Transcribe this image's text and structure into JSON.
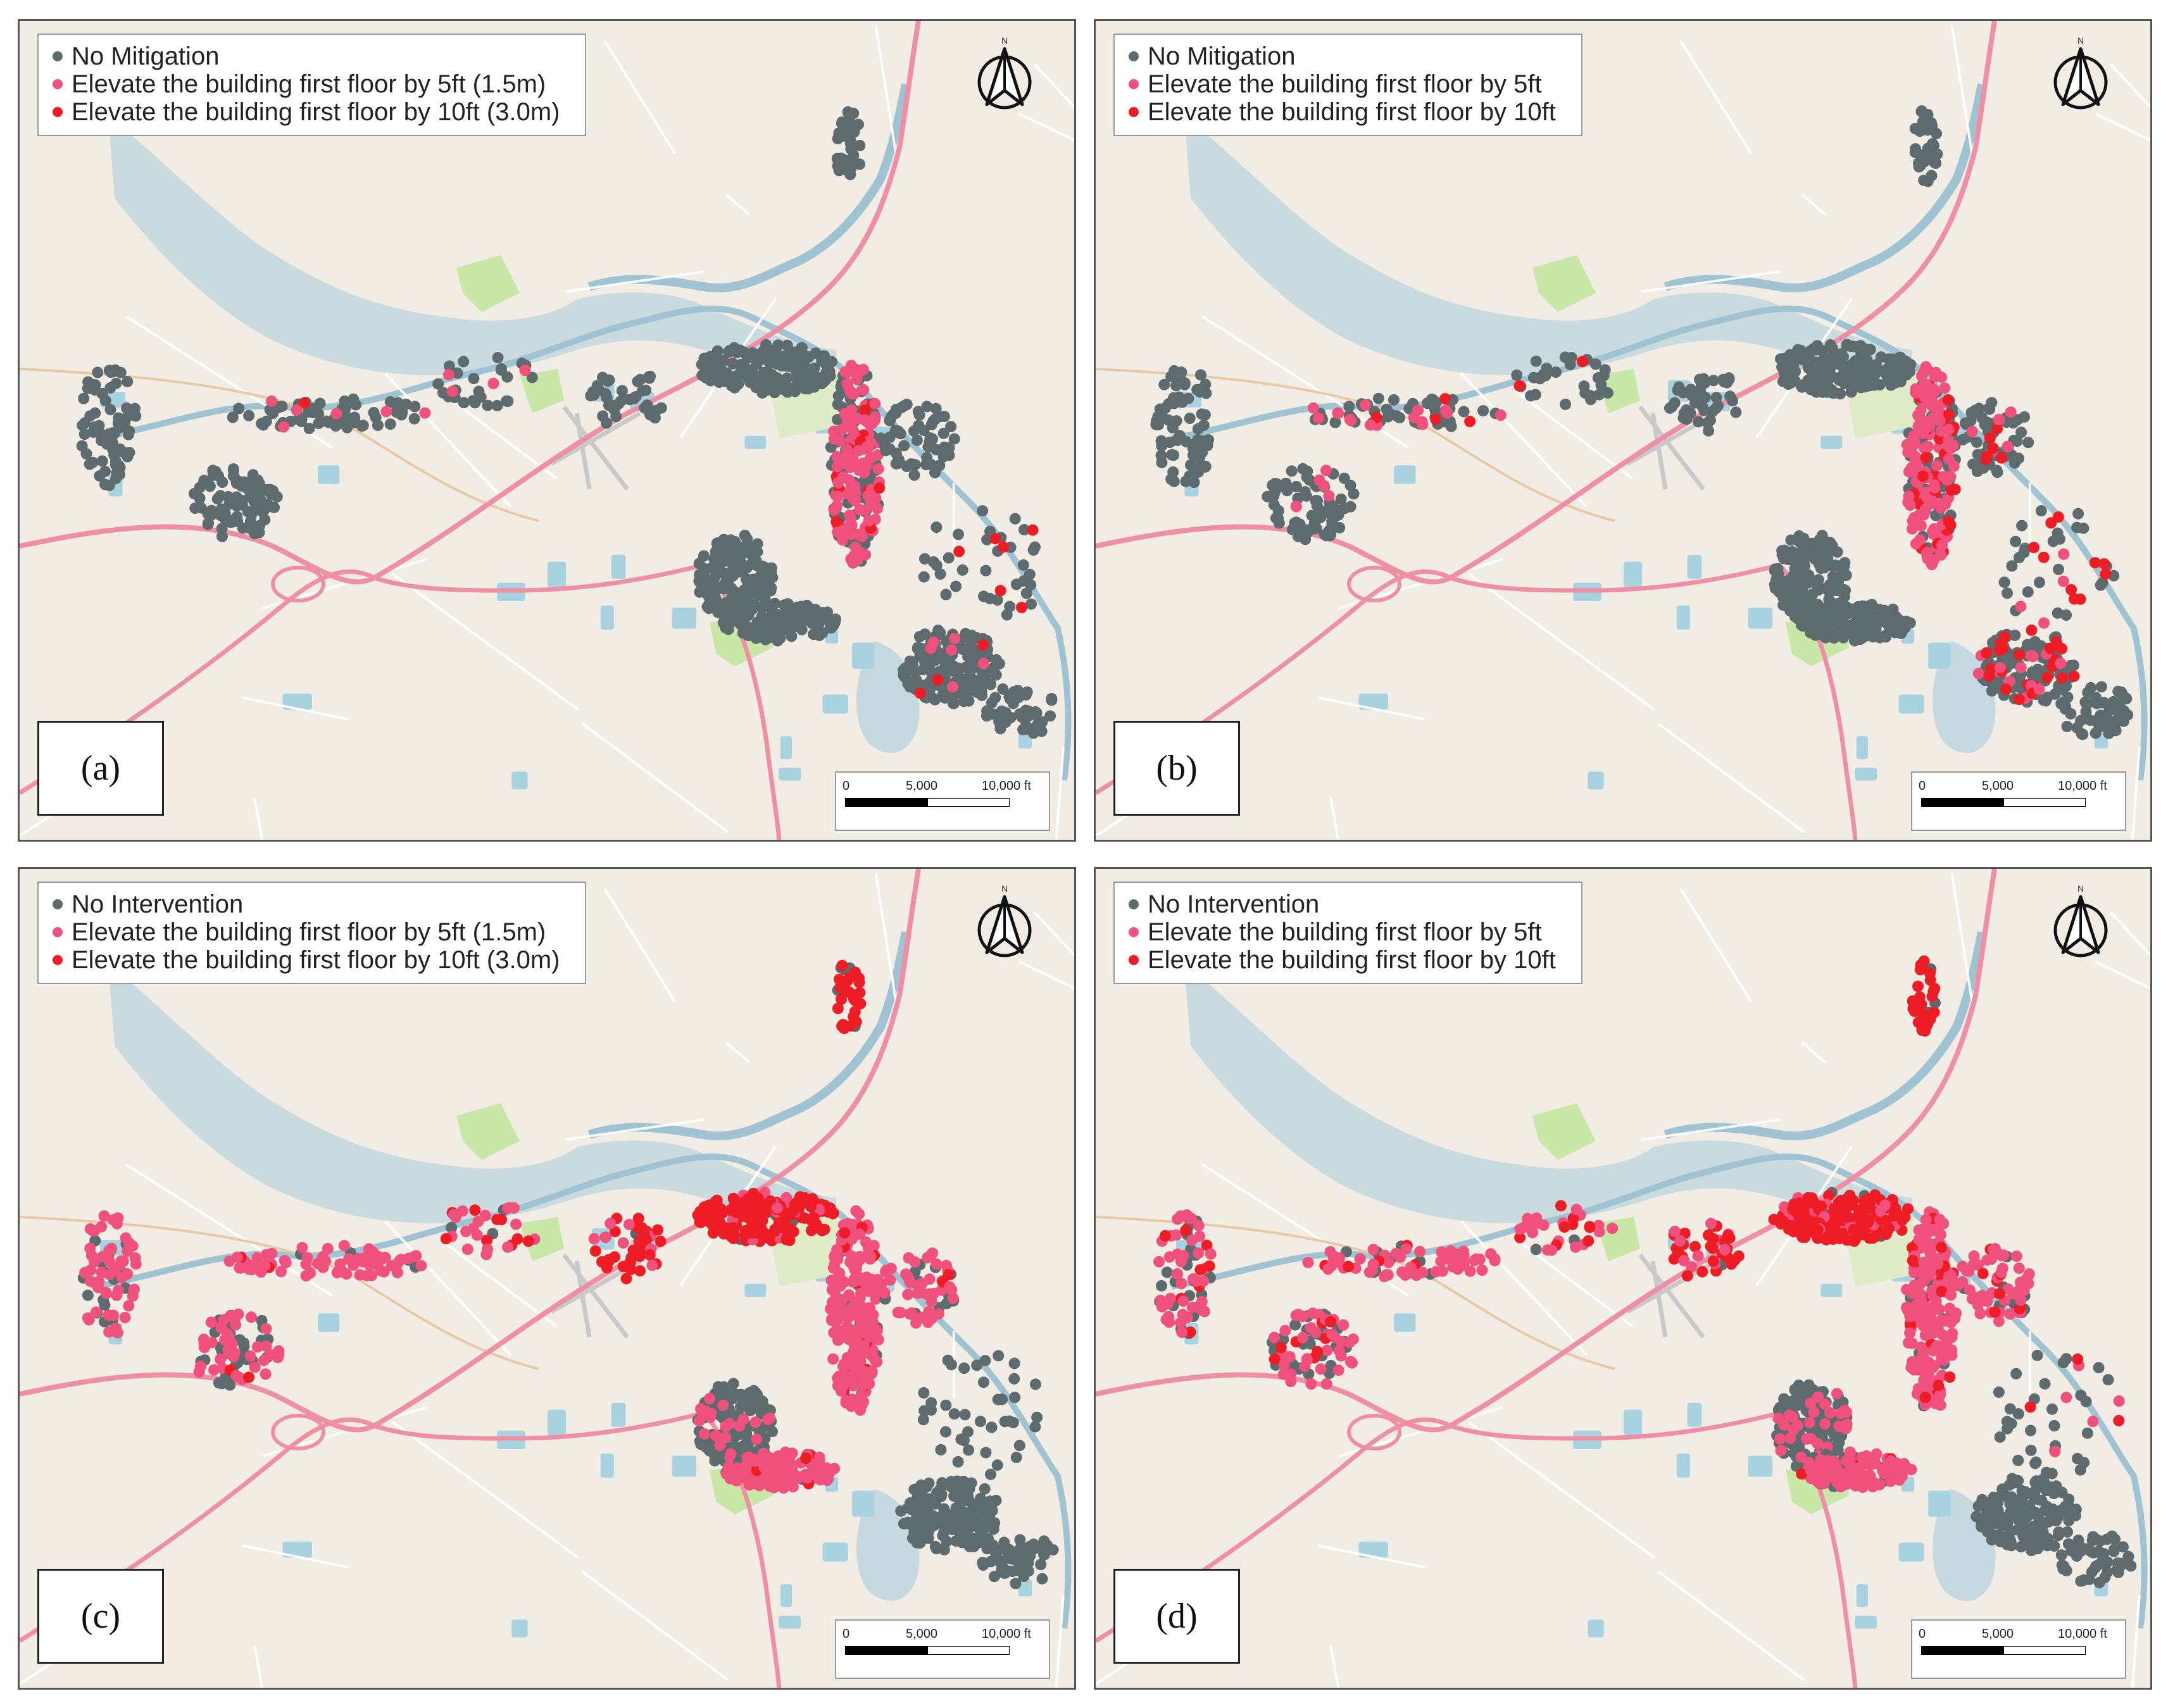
{
  "panels": [
    {
      "label": "(a)",
      "legend": [
        {
          "text": "No Mitigation",
          "color": "#5d6b6e"
        },
        {
          "text": "Elevate the building first floor by 5ft (1.5m)",
          "color": "#f0507c"
        },
        {
          "text": "Elevate the building first floor by 10ft (3.0m)",
          "color": "#ee1c24"
        }
      ],
      "north_label": "N",
      "scale": {
        "ticks": [
          "0",
          "5,000",
          "10,000 ft"
        ]
      },
      "scenario": "a"
    },
    {
      "label": "(b)",
      "legend": [
        {
          "text": "No Mitigation",
          "color": "#5d6b6e"
        },
        {
          "text": "Elevate the building first floor by 5ft",
          "color": "#f0507c"
        },
        {
          "text": "Elevate the building first floor by 10ft",
          "color": "#ee1c24"
        }
      ],
      "north_label": "N",
      "scale": {
        "ticks": [
          "0",
          "5,000",
          "10,000 ft"
        ]
      },
      "scenario": "b"
    },
    {
      "label": "(c)",
      "legend": [
        {
          "text": "No Intervention",
          "color": "#5d6b6e"
        },
        {
          "text": "Elevate the building first floor by 5ft (1.5m)",
          "color": "#f0507c"
        },
        {
          "text": "Elevate the building first floor by 10ft (3.0m)",
          "color": "#ee1c24"
        }
      ],
      "north_label": "N",
      "scale": {
        "ticks": [
          "0",
          "5,000",
          "10,000 ft"
        ]
      },
      "scenario": "c"
    },
    {
      "label": "(d)",
      "legend": [
        {
          "text": "No Intervention",
          "color": "#5d6b6e"
        },
        {
          "text": "Elevate the building first floor by 5ft",
          "color": "#f0507c"
        },
        {
          "text": "Elevate the building first floor by 10ft",
          "color": "#ee1c24"
        }
      ],
      "north_label": "N",
      "scale": {
        "ticks": [
          "0",
          "5,000",
          "10,000 ft"
        ]
      },
      "scenario": "d"
    }
  ],
  "colors": {
    "land": "#f1ece4",
    "water": "#bcd5df",
    "park": "#c9e8a8",
    "highway": "#ee8fa3",
    "road": "#ffffff",
    "gray_point": "#5d6b6e",
    "pink_point": "#f0507c",
    "red_point": "#ee1c24"
  }
}
